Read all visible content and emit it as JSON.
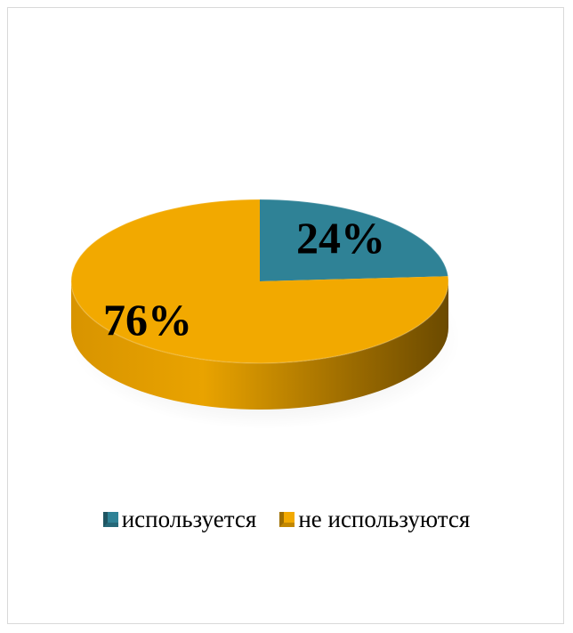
{
  "chart_data": {
    "type": "pie",
    "categories": [
      "используется",
      "не используются"
    ],
    "values": [
      24,
      76
    ],
    "labels": [
      "24%",
      "76%"
    ],
    "colors": [
      "#2f8296",
      "#f2a900"
    ],
    "title": "",
    "legend_position": "bottom",
    "style": "3d"
  },
  "legend": {
    "items": [
      {
        "label": "используется",
        "color": "#2f8296"
      },
      {
        "label": "не используются",
        "color": "#f2a900"
      }
    ]
  }
}
